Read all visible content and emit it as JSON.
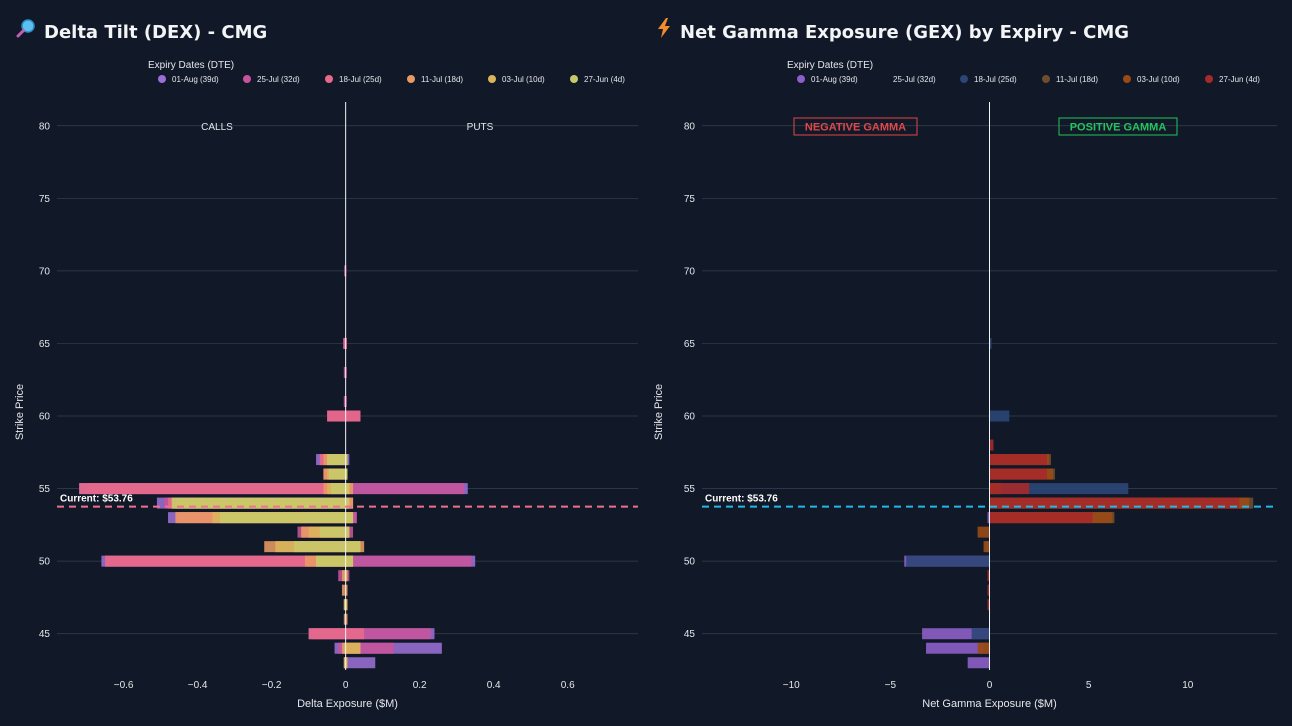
{
  "titles": {
    "left": "Delta Tilt (DEX) - CMG",
    "right": "Net Gamma Exposure (GEX) by Expiry - CMG",
    "left_icon": "magnifier-icon",
    "right_icon": "lightning-icon"
  },
  "colors": {
    "background": "#111827",
    "grid": "#374151",
    "current_left": "#f07090",
    "current_right": "#22b8e8",
    "negative_box": "#e04848",
    "positive_box": "#22c55e"
  },
  "chart_data": [
    {
      "type": "bar",
      "orientation": "horizontal",
      "barmode": "stacked-overlay",
      "title": "Delta Tilt (DEX) - CMG",
      "xlabel": "Delta Exposure ($M)",
      "ylabel": "Strike Price",
      "xlim": [
        -0.78,
        0.79
      ],
      "ylim": [
        42.5,
        81.5
      ],
      "xticks": [
        -0.6,
        -0.4,
        -0.2,
        0,
        0.2,
        0.4,
        0.6
      ],
      "xtick_labels": [
        "−0.6",
        "−0.4",
        "−0.2",
        "0",
        "0.2",
        "0.4",
        "0.6"
      ],
      "yticks": [
        45,
        50,
        55,
        60,
        65,
        70,
        75,
        80
      ],
      "legend_title": "Expiry Dates (DTE)",
      "legend_position": "top",
      "annotations": {
        "left": "CALLS",
        "right": "PUTS"
      },
      "current_price": 53.76,
      "current_label": "Current: $53.76",
      "series": [
        {
          "name": "01-Aug (39d)",
          "color": "#9b6fd6",
          "data": [
            [
              43,
              0,
              0.08
            ],
            [
              44,
              -0.03,
              0.26
            ],
            [
              45,
              -0.1,
              0.24
            ],
            [
              50,
              -0.66,
              0.35
            ],
            [
              53,
              -0.48,
              0.03
            ],
            [
              54,
              -0.51,
              0.02
            ],
            [
              55,
              -0.72,
              0.33
            ],
            [
              57,
              -0.08,
              0.01
            ]
          ]
        },
        {
          "name": "25-Jul (32d)",
          "color": "#c7549a",
          "data": [
            [
              44,
              -0.02,
              0.13
            ],
            [
              45,
              -0.09,
              0.23
            ],
            [
              49,
              -0.02,
              0.01
            ],
            [
              50,
              -0.65,
              0.34
            ],
            [
              52,
              -0.13,
              0.02
            ],
            [
              53,
              -0.46,
              0.03
            ],
            [
              54,
              -0.49,
              0.02
            ],
            [
              55,
              -0.7,
              0.32
            ],
            [
              56,
              -0.06,
              0.005
            ],
            [
              57,
              -0.07,
              0.005
            ],
            [
              60,
              -0.05,
              0.04
            ],
            [
              61,
              -0.005,
              0.003
            ],
            [
              63,
              -0.005,
              0.003
            ],
            [
              65,
              -0.007,
              0.003
            ],
            [
              70,
              -0.004,
              0.002
            ]
          ]
        },
        {
          "name": "18-Jul (25d)",
          "color": "#e86a8a",
          "data": [
            [
              45,
              -0.1,
              0.05
            ],
            [
              50,
              -0.65,
              0.02
            ],
            [
              52,
              -0.12,
              0.01
            ],
            [
              53,
              -0.45,
              0.02
            ],
            [
              54,
              -0.48,
              0.02
            ],
            [
              55,
              -0.72,
              0.02
            ],
            [
              56,
              -0.06,
              0.005
            ],
            [
              57,
              -0.07,
              0.005
            ],
            [
              60,
              -0.05,
              0.04
            ],
            [
              65,
              -0.005,
              0.003
            ]
          ]
        },
        {
          "name": "11-Jul (18d)",
          "color": "#e99a64",
          "data": [
            [
              43,
              -0.005,
              0.005
            ],
            [
              44,
              -0.01,
              0.04
            ],
            [
              46,
              -0.005,
              0.005
            ],
            [
              47,
              -0.005,
              0.005
            ],
            [
              48,
              -0.01,
              0.005
            ],
            [
              49,
              -0.01,
              0.005
            ],
            [
              50,
              -0.11,
              0.02
            ],
            [
              51,
              -0.22,
              0.05
            ],
            [
              52,
              -0.12,
              0.01
            ],
            [
              53,
              -0.46,
              0.02
            ],
            [
              54,
              -0.47,
              0.02
            ],
            [
              55,
              -0.06,
              0.02
            ],
            [
              56,
              -0.06,
              0.005
            ],
            [
              57,
              -0.06,
              0.005
            ]
          ]
        },
        {
          "name": "03-Jul (10d)",
          "color": "#d9b45a",
          "data": [
            [
              43,
              -0.005,
              0.005
            ],
            [
              44,
              -0.005,
              0.04
            ],
            [
              47,
              -0.005,
              0.005
            ],
            [
              49,
              -0.005,
              0.005
            ],
            [
              50,
              -0.08,
              0.02
            ],
            [
              51,
              -0.19,
              0.04
            ],
            [
              52,
              -0.1,
              0.01
            ],
            [
              53,
              -0.36,
              0.02
            ],
            [
              54,
              -0.46,
              0.01
            ],
            [
              55,
              -0.05,
              0.01
            ],
            [
              56,
              -0.05,
              0.005
            ],
            [
              57,
              -0.05,
              0.005
            ]
          ]
        },
        {
          "name": "27-Jun (4d)",
          "color": "#c8c86a",
          "data": [
            [
              50,
              -0.08,
              0.02
            ],
            [
              51,
              -0.14,
              0.04
            ],
            [
              52,
              -0.07,
              0.01
            ],
            [
              53,
              -0.34,
              0.02
            ],
            [
              54,
              -0.47,
              0.01
            ],
            [
              55,
              -0.04,
              0.01
            ],
            [
              56,
              -0.045,
              0.005
            ],
            [
              57,
              -0.05,
              0.005
            ]
          ]
        }
      ]
    },
    {
      "type": "bar",
      "orientation": "horizontal",
      "barmode": "overlay",
      "title": "Net Gamma Exposure (GEX) by Expiry - CMG",
      "xlabel": "Net Gamma Exposure ($M)",
      "ylabel": "Strike Price",
      "xlim": [
        -14.5,
        14.5
      ],
      "ylim": [
        42.5,
        81.5
      ],
      "xticks": [
        -10,
        -5,
        0,
        5,
        10
      ],
      "xtick_labels": [
        "−10",
        "−5",
        "0",
        "5",
        "10"
      ],
      "yticks": [
        45,
        50,
        55,
        60,
        65,
        70,
        75,
        80
      ],
      "legend_title": "Expiry Dates (DTE)",
      "legend_position": "top",
      "annotations": {
        "negative": "NEGATIVE GAMMA",
        "positive": "POSITIVE GAMMA"
      },
      "current_price": 53.76,
      "current_label": "Current: $53.76",
      "series": [
        {
          "name": "01-Aug (39d)",
          "color": "#8d5fc9",
          "data": [
            [
              43,
              -1.1
            ],
            [
              44,
              -3.2
            ],
            [
              45,
              -3.4
            ],
            [
              50,
              -4.3
            ],
            [
              53,
              -0.1
            ],
            [
              55,
              0.1
            ]
          ]
        },
        {
          "name": "25-Jul (32d)",
          "color": "#111827",
          "data": []
        },
        {
          "name": "18-Jul (25d)",
          "color": "#2c4677",
          "data": [
            [
              45,
              -0.9
            ],
            [
              50,
              -4.2
            ],
            [
              55,
              7.0
            ],
            [
              60,
              1.0
            ],
            [
              65,
              0.1
            ],
            [
              54,
              0.5
            ]
          ]
        },
        {
          "name": "11-Jul (18d)",
          "color": "#6e4d2f",
          "data": [
            [
              44,
              -0.3
            ],
            [
              51,
              -0.2
            ],
            [
              53,
              6.3
            ],
            [
              54,
              13.3
            ],
            [
              55,
              0.6
            ],
            [
              56,
              3.3
            ],
            [
              57,
              3.1
            ]
          ]
        },
        {
          "name": "03-Jul (10d)",
          "color": "#9a4a15",
          "data": [
            [
              44,
              -0.6
            ],
            [
              51,
              -0.3
            ],
            [
              52,
              -0.6
            ],
            [
              53,
              6.2
            ],
            [
              54,
              13.1
            ],
            [
              55,
              0.5
            ],
            [
              56,
              3.2
            ],
            [
              57,
              3.0
            ]
          ]
        },
        {
          "name": "27-Jun (4d)",
          "color": "#a62a2a",
          "data": [
            [
              53,
              5.2
            ],
            [
              54,
              12.6
            ],
            [
              55,
              2.0
            ],
            [
              56,
              2.9
            ],
            [
              57,
              2.9
            ],
            [
              58,
              0.2
            ],
            [
              47,
              -0.1
            ],
            [
              48,
              -0.1
            ],
            [
              49,
              -0.1
            ]
          ]
        }
      ]
    }
  ]
}
